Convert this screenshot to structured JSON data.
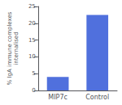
{
  "chart_data": {
    "type": "bar",
    "categories": [
      "MIP7c",
      "Control"
    ],
    "values": [
      4.0,
      22.5
    ],
    "ylabel": "% IgA immune complexes\ninternalised",
    "ylim": [
      0,
      25
    ],
    "yticks": [
      0,
      5,
      10,
      15,
      20,
      25
    ],
    "grid": false
  }
}
